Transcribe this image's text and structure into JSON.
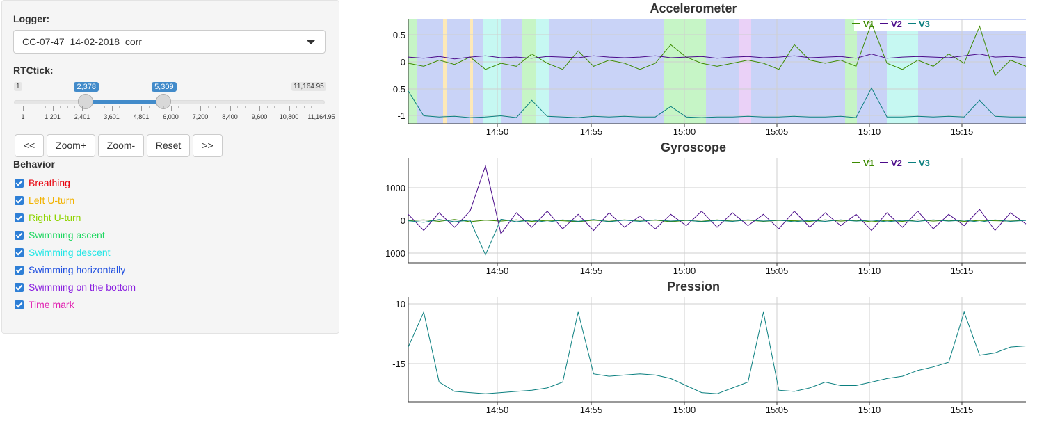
{
  "sidebar": {
    "logger_label": "Logger:",
    "logger_value": "CC-07-47_14-02-2018_corr",
    "rtctick_label": "RTCtick:",
    "slider": {
      "min_label": "1",
      "max_label": "11,164.95",
      "low_label": "2,378",
      "high_label": "5,309",
      "min": 1,
      "max": 11164.95,
      "low": 2378,
      "high": 5309,
      "tick_labels": [
        "1",
        "1,201",
        "2,401",
        "3,601",
        "4,801",
        "6,000",
        "7,200",
        "8,400",
        "9,600",
        "10,800",
        "11,164.95"
      ]
    },
    "buttons": {
      "prev": "<<",
      "zoom_in": "Zoom+",
      "zoom_out": "Zoom-",
      "reset": "Reset",
      "next": ">>"
    },
    "behavior_label": "Behavior",
    "behaviors": [
      {
        "label": "Breathing",
        "color": "#e8000b",
        "checked": true
      },
      {
        "label": "Left U-turn",
        "color": "#f2b200",
        "checked": true
      },
      {
        "label": "Right U-turn",
        "color": "#8fd400",
        "checked": true
      },
      {
        "label": "Swimming ascent",
        "color": "#1ed760",
        "checked": true
      },
      {
        "label": "Swimming descent",
        "color": "#22e6e6",
        "checked": true
      },
      {
        "label": "Swimming horizontally",
        "color": "#1f4fe0",
        "checked": true
      },
      {
        "label": "Swimming on the bottom",
        "color": "#8a1fe0",
        "checked": true
      },
      {
        "label": "Time mark",
        "color": "#e01fb0",
        "checked": true
      }
    ]
  },
  "colors": {
    "v1": "#3d8b00",
    "v2": "#4b0b8a",
    "v3": "#0a7f7f"
  },
  "x_axis_ticks": [
    "14:50",
    "14:55",
    "15:00",
    "15:05",
    "15:10",
    "15:15"
  ],
  "chart_data": [
    {
      "type": "line",
      "title": "Accelerometer",
      "x_ticks": [
        "14:50",
        "14:55",
        "15:00",
        "15:05",
        "15:10",
        "15:15"
      ],
      "y_ticks": [
        "0.5",
        "0",
        "-0.5",
        "-1"
      ],
      "ylim": [
        -1.08,
        0.62
      ],
      "legend": [
        "V1",
        "V2",
        "V3"
      ],
      "legend_position": "top-right",
      "series": [
        {
          "name": "V1",
          "values": [
            -0.1,
            -0.15,
            -0.05,
            -0.12,
            0,
            -0.2,
            -0.1,
            -0.15,
            0.05,
            -0.1,
            -0.2,
            0.1,
            -0.15,
            -0.05,
            -0.1,
            -0.2,
            -0.1,
            0.2,
            0,
            -0.1,
            -0.15,
            -0.1,
            -0.05,
            -0.1,
            -0.2,
            0.2,
            -0.05,
            -0.1,
            -0.05,
            -0.15,
            0.55,
            -0.1,
            -0.2,
            -0.05,
            -0.15,
            0.05,
            -0.1,
            0.5,
            -0.3,
            -0.05,
            -0.15
          ]
        },
        {
          "name": "V2",
          "values": [
            0,
            -0.02,
            0.01,
            -0.03,
            0,
            0.02,
            -0.01,
            0,
            -0.02,
            0.01,
            0,
            -0.01,
            0.02,
            0,
            -0.01,
            0,
            0.02,
            -0.01,
            0,
            0.01,
            -0.02,
            0,
            0.01,
            -0.01,
            0,
            0.02,
            -0.01,
            0,
            0.01,
            -0.02,
            0.05,
            -0.02,
            0,
            0.01,
            0,
            -0.01,
            0.02,
            0.05,
            0,
            0.01,
            -0.01
          ]
        },
        {
          "name": "V3",
          "values": [
            -0.55,
            -0.95,
            -0.97,
            -0.96,
            -0.98,
            -0.97,
            -0.95,
            -0.98,
            -0.7,
            -0.96,
            -0.97,
            -0.98,
            -0.96,
            -0.97,
            -0.96,
            -0.97,
            -0.97,
            -0.8,
            -0.97,
            -0.98,
            -0.97,
            -0.97,
            -0.96,
            -0.97,
            -0.97,
            -0.96,
            -0.97,
            -0.97,
            -0.96,
            -0.98,
            -0.5,
            -0.97,
            -0.97,
            -0.96,
            -0.97,
            -0.96,
            -0.97,
            -0.7,
            -0.96,
            -0.97,
            -0.97
          ]
        }
      ]
    },
    {
      "type": "line",
      "title": "Gyroscope",
      "x_ticks": [
        "14:50",
        "14:55",
        "15:00",
        "15:05",
        "15:10",
        "15:15"
      ],
      "y_ticks": [
        "1000",
        "0",
        "-1000"
      ],
      "ylim": [
        -1300,
        1950
      ],
      "legend": [
        "V1",
        "V2",
        "V3"
      ],
      "legend_position": "top-right",
      "series": [
        {
          "name": "V1",
          "values": [
            0,
            30,
            -20,
            40,
            -30,
            20,
            -10,
            30,
            -20,
            10,
            0,
            -30,
            20,
            -20,
            30,
            -10,
            20,
            -30,
            10,
            -20,
            30,
            -10,
            20,
            -20,
            10,
            0,
            -20,
            30,
            -10,
            20,
            -30,
            10,
            -20,
            30,
            -10,
            20,
            -20,
            10,
            0,
            -10,
            20
          ]
        },
        {
          "name": "V2",
          "values": [
            200,
            -300,
            250,
            -200,
            300,
            1700,
            -400,
            250,
            -200,
            300,
            -250,
            200,
            -300,
            250,
            -200,
            150,
            -250,
            200,
            -150,
            300,
            -200,
            250,
            -150,
            200,
            -250,
            300,
            -200,
            250,
            -150,
            200,
            -300,
            250,
            -200,
            300,
            -250,
            200,
            -150,
            350,
            -300,
            250,
            -100
          ]
        },
        {
          "name": "V3",
          "values": [
            0,
            -50,
            40,
            -30,
            20,
            -1050,
            50,
            -30,
            20,
            -40,
            30,
            -20,
            40,
            -30,
            20,
            -20,
            30,
            -10,
            20,
            -30,
            10,
            -20,
            30,
            -10,
            20,
            -30,
            10,
            -20,
            30,
            -10,
            20,
            -30,
            10,
            -20,
            30,
            -10,
            20,
            -40,
            30,
            -20,
            10
          ]
        }
      ]
    },
    {
      "type": "line",
      "title": "Pression",
      "x_ticks": [
        "14:50",
        "14:55",
        "15:00",
        "15:05",
        "15:10",
        "15:15"
      ],
      "y_ticks": [
        "-10",
        "-15"
      ],
      "ylim": [
        -18.2,
        -9.2
      ],
      "series": [
        {
          "name": "",
          "values": [
            -13.5,
            -10.5,
            -16.5,
            -17.3,
            -17.4,
            -17.5,
            -17.4,
            -17.3,
            -17.2,
            -17,
            -16.5,
            -10.5,
            -15.8,
            -16,
            -15.9,
            -15.8,
            -15.9,
            -16.2,
            -16.8,
            -17.4,
            -17.5,
            -17,
            -16.5,
            -10.5,
            -17.2,
            -17.3,
            -17,
            -16.5,
            -16.8,
            -16.8,
            -16.5,
            -16.2,
            -16,
            -15.5,
            -15.2,
            -14.8,
            -10.5,
            -14.2,
            -14,
            -13.5,
            -13.4
          ]
        }
      ]
    }
  ]
}
